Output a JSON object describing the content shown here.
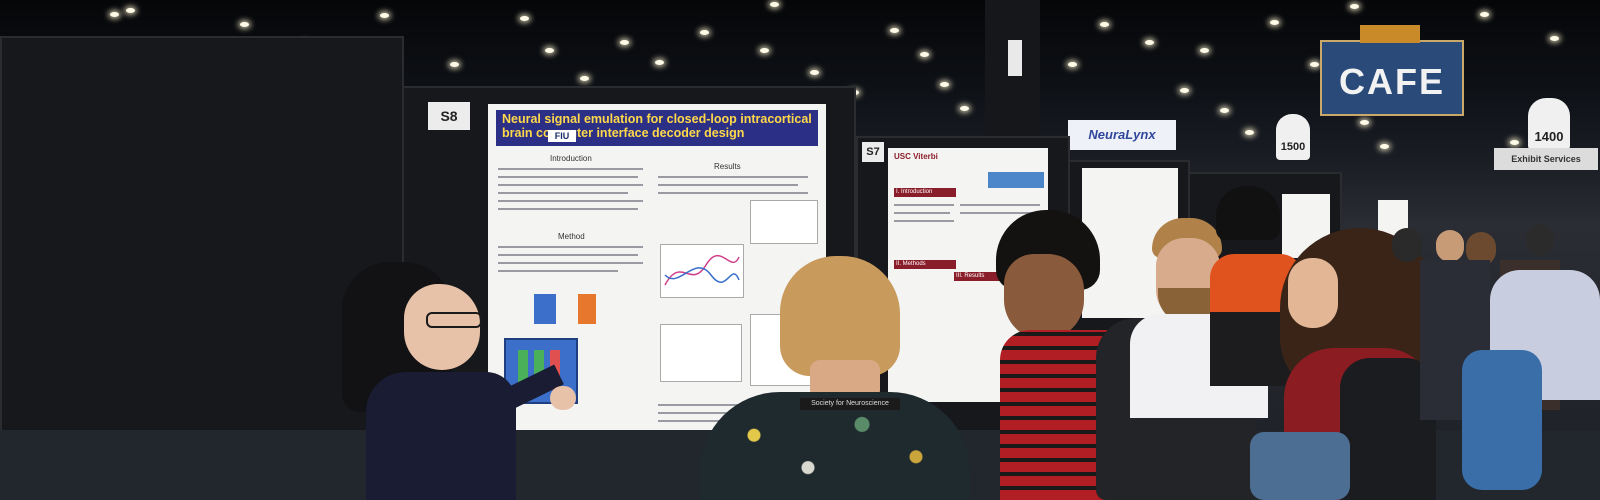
{
  "scene": {
    "description_type": "poster-session photo",
    "colors": {
      "board": "#17181b",
      "poster_header": "#2b2f86",
      "poster_title": "#ffd94a",
      "cafe_sign": "#2a4a7a",
      "plaid_shirt": "#b11f24"
    }
  },
  "signs": {
    "board_s8": "S8",
    "board_s7": "S7",
    "cafe": "CAFE",
    "aisle_1500": "1500",
    "aisle_1400": "1400",
    "neuralynx": "NeuraLynx",
    "exhibit": "Exhibit Services"
  },
  "poster_s8": {
    "title": "Neural signal emulation for closed-loop intracortical brain computer interface decoder design",
    "logo_fiu": "FIU",
    "section_intro": "Introduction",
    "section_method": "Method",
    "section_results": "Results"
  },
  "poster_s7": {
    "logo": "USC Viterbi",
    "section_intro": "I. Introduction",
    "section_methods": "II. Methods",
    "section_results": "III. Results"
  },
  "lanyard_text": "Society for Neuroscience"
}
